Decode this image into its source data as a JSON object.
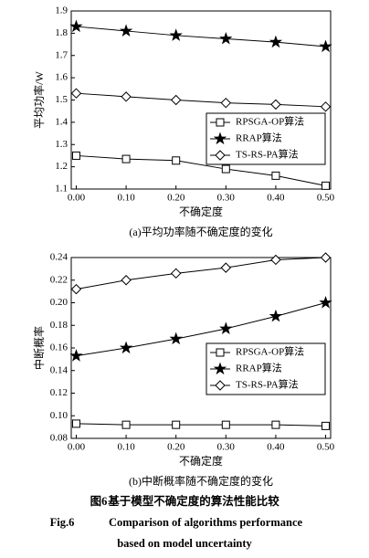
{
  "chart_data": [
    {
      "type": "line",
      "x_label": "不确定度",
      "y_label": "平均功率/W",
      "caption": "(a)平均功率随不确定度的变化",
      "x": [
        0,
        0.1,
        0.2,
        0.3,
        0.4,
        0.5
      ],
      "xlim": [
        -0.01,
        0.51
      ],
      "xticks": [
        {
          "value": 0,
          "label": "0.00"
        },
        {
          "value": 0.1,
          "label": "0.10"
        },
        {
          "value": 0.2,
          "label": "0.20"
        },
        {
          "value": 0.3,
          "label": "0.30"
        },
        {
          "value": 0.4,
          "label": "0.40"
        },
        {
          "value": 0.5,
          "label": "0.50"
        }
      ],
      "ylim": [
        1.1,
        1.9
      ],
      "yticks": [
        1.1,
        1.2,
        1.3,
        1.4,
        1.5,
        1.6,
        1.7,
        1.8,
        1.9
      ],
      "legend": "lower right",
      "series": [
        {
          "name": "RPSGA-OP算法",
          "color": "#000000",
          "marker": "square",
          "values": [
            1.25,
            1.235,
            1.228,
            1.19,
            1.16,
            1.115
          ]
        },
        {
          "name": "RRAP算法",
          "color": "#000000",
          "marker": "star",
          "values": [
            1.83,
            1.81,
            1.79,
            1.775,
            1.76,
            1.74
          ]
        },
        {
          "name": "TS-RS-PA算法",
          "color": "#000000",
          "marker": "diamond",
          "values": [
            1.53,
            1.515,
            1.5,
            1.487,
            1.48,
            1.47
          ]
        }
      ]
    },
    {
      "type": "line",
      "x_label": "不确定度",
      "y_label": "中断概率",
      "caption": "(b)中断概率随不确定度的变化",
      "x": [
        0,
        0.1,
        0.2,
        0.3,
        0.4,
        0.5
      ],
      "xlim": [
        -0.01,
        0.51
      ],
      "xticks": [
        {
          "value": 0,
          "label": "0.00"
        },
        {
          "value": 0.1,
          "label": "0.10"
        },
        {
          "value": 0.2,
          "label": "0.20"
        },
        {
          "value": 0.3,
          "label": "0.30"
        },
        {
          "value": 0.4,
          "label": "0.40"
        },
        {
          "value": 0.5,
          "label": "0.50"
        }
      ],
      "ylim": [
        0.08,
        0.24
      ],
      "yticks": [
        0.08,
        {
          "value": 0.1,
          "label": "0.10"
        },
        0.12,
        0.14,
        0.16,
        0.18,
        {
          "value": 0.2,
          "label": "0.20"
        },
        0.22,
        0.24
      ],
      "legend": "lower right",
      "series": [
        {
          "name": "RPSGA-OP算法",
          "color": "#000000",
          "marker": "square",
          "values": [
            0.093,
            0.092,
            0.092,
            0.092,
            0.092,
            0.091
          ]
        },
        {
          "name": "RRAP算法",
          "color": "#000000",
          "marker": "star",
          "values": [
            0.153,
            0.16,
            0.168,
            0.177,
            0.188,
            0.2
          ]
        },
        {
          "name": "TS-RS-PA算法",
          "color": "#000000",
          "marker": "diamond",
          "values": [
            0.212,
            0.22,
            0.226,
            0.231,
            0.238,
            0.24
          ]
        }
      ]
    }
  ],
  "figure_caption": {
    "label": "图6",
    "text": "基于模型不确定度的算法性能比较",
    "en_label": "Fig.6",
    "en_lines": [
      "Comparison of algorithms performance",
      "based on model uncertainty"
    ]
  }
}
